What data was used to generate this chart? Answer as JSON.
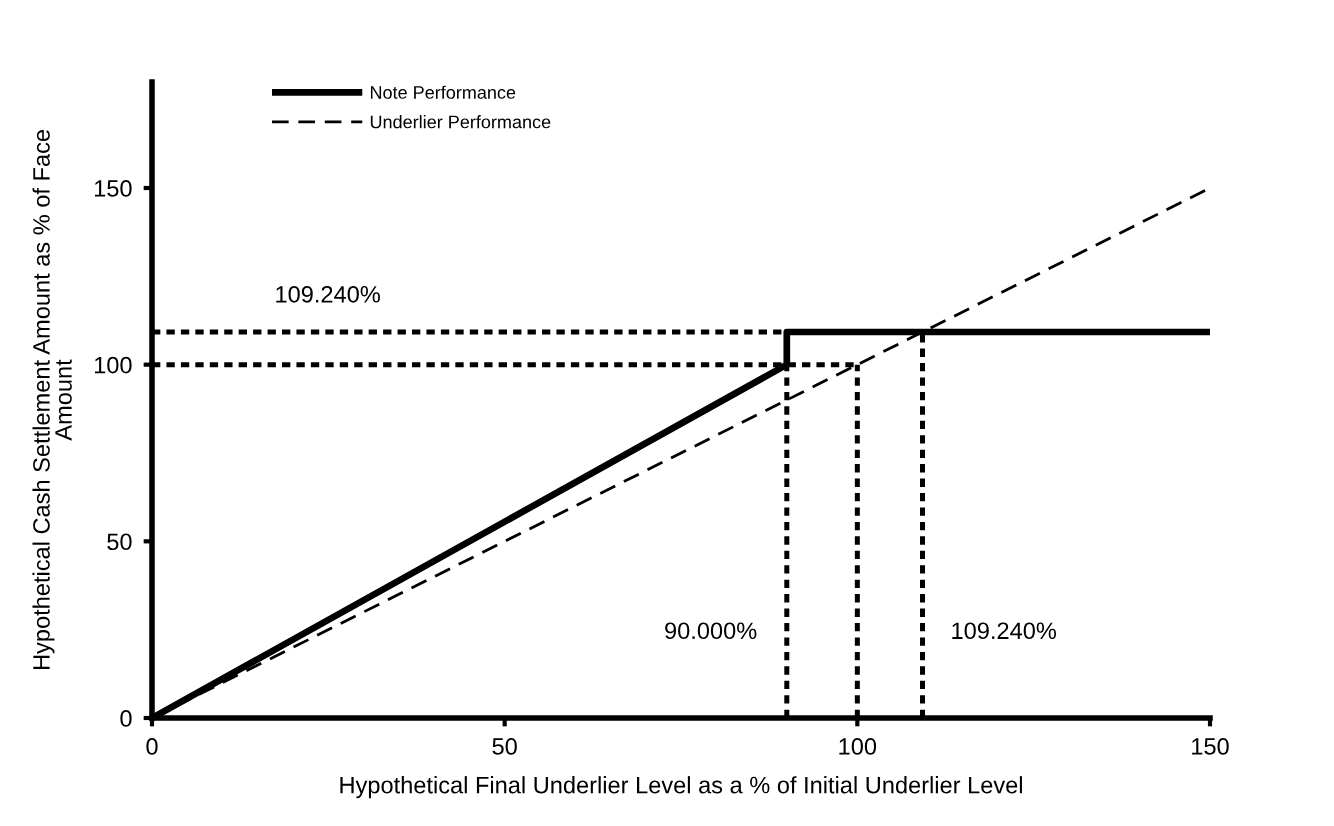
{
  "chart_data": {
    "type": "line",
    "xlabel": "Hypothetical Final Underlier Level as a % of Initial Underlier Level",
    "ylabel": "Hypothetical Cash Settlement Amount as % of Face\nAmount",
    "xlim": [
      0,
      150
    ],
    "xticks": [
      0,
      50,
      100,
      150
    ],
    "ylim": [
      0,
      180
    ],
    "yticks": [
      0,
      50,
      100,
      150
    ],
    "legend": "top left",
    "series": [
      {
        "name": "Note Performance",
        "color": "#000000",
        "x": [
          0,
          90,
          90,
          150
        ],
        "values": [
          0,
          100,
          109.24,
          109.24
        ],
        "line_style": "solid"
      },
      {
        "name": "Underlier Performance",
        "color": "#000000",
        "x": [
          0,
          150
        ],
        "values": [
          0,
          150
        ],
        "line_style": "dashed"
      },
      {
        "color": "#000000",
        "x": [
          0,
          109.24
        ],
        "values": [
          109.24,
          109.24
        ],
        "line_style": "dashed"
      },
      {
        "color": "#000000",
        "x": [
          0,
          100
        ],
        "values": [
          100,
          100
        ],
        "line_style": "dashed"
      },
      {
        "color": "#000000",
        "x": [
          90,
          90
        ],
        "values": [
          0,
          100
        ],
        "line_style": "dashed"
      },
      {
        "color": "#000000",
        "x": [
          100,
          100
        ],
        "values": [
          0,
          100
        ],
        "line_style": "dashed"
      },
      {
        "color": "#000000",
        "x": [
          109.24,
          109.24
        ],
        "values": [
          0,
          109.24
        ],
        "line_style": "dashed"
      }
    ],
    "annotations": [
      "109.240%",
      "90.000%",
      "109.240%"
    ]
  }
}
